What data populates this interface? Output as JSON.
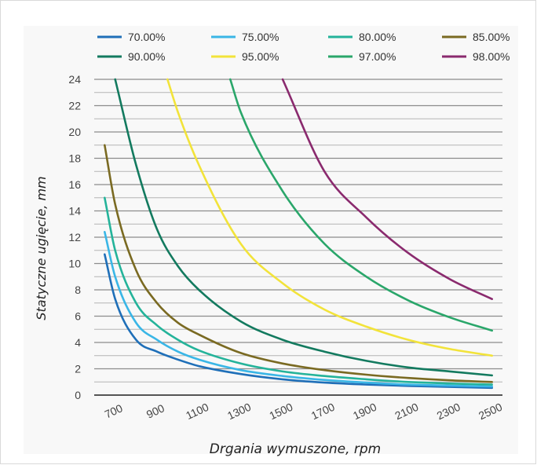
{
  "chart_data": {
    "type": "line",
    "title": "",
    "xlabel": "Drgania wymuszone, rpm",
    "ylabel": "Statyczne ugięcie, mm",
    "xlim": [
      600,
      2550
    ],
    "ylim": [
      0,
      24
    ],
    "x_ticks": [
      "700",
      "900",
      "1100",
      "1300",
      "1500",
      "1700",
      "1900",
      "2100",
      "2300",
      "2500"
    ],
    "y_ticks": [
      "0",
      "2",
      "4",
      "6",
      "8",
      "10",
      "12",
      "14",
      "16",
      "18",
      "20",
      "22",
      "24"
    ],
    "grid": "horizontal",
    "legend_position": "top",
    "series": [
      {
        "name": "70.00%",
        "color": "#1f6fb8",
        "x": [
          650,
          700,
          800,
          900,
          1000,
          1100,
          1300,
          1500,
          1700,
          1900,
          2100,
          2300,
          2500
        ],
        "y": [
          10.7,
          7.3,
          4.2,
          3.3,
          2.7,
          2.2,
          1.6,
          1.2,
          0.95,
          0.8,
          0.7,
          0.62,
          0.55
        ]
      },
      {
        "name": "75.00%",
        "color": "#3ab6e6",
        "x": [
          650,
          700,
          800,
          900,
          1000,
          1100,
          1300,
          1500,
          1700,
          1900,
          2100,
          2300,
          2500
        ],
        "y": [
          12.4,
          9.0,
          5.5,
          4.2,
          3.3,
          2.7,
          1.9,
          1.45,
          1.15,
          0.95,
          0.8,
          0.72,
          0.65
        ]
      },
      {
        "name": "80.00%",
        "color": "#24b39a",
        "x": [
          650,
          700,
          800,
          900,
          1000,
          1100,
          1300,
          1500,
          1700,
          1900,
          2100,
          2300,
          2500
        ],
        "y": [
          15.0,
          11.0,
          7.0,
          5.3,
          4.2,
          3.4,
          2.4,
          1.8,
          1.45,
          1.2,
          1.0,
          0.88,
          0.8
        ]
      },
      {
        "name": "85.00%",
        "color": "#7a6a22",
        "x": [
          650,
          700,
          800,
          900,
          1000,
          1100,
          1300,
          1500,
          1700,
          1900,
          2100,
          2300,
          2500
        ],
        "y": [
          19.0,
          14.5,
          9.5,
          7.0,
          5.5,
          4.6,
          3.2,
          2.4,
          1.9,
          1.55,
          1.3,
          1.12,
          1.0
        ]
      },
      {
        "name": "90.00%",
        "color": "#137a5f",
        "x": [
          700,
          800,
          900,
          1000,
          1100,
          1300,
          1500,
          1700,
          1900,
          2100,
          2300,
          2500
        ],
        "y": [
          24.0,
          17.5,
          12.6,
          9.8,
          8.0,
          5.6,
          4.2,
          3.3,
          2.6,
          2.1,
          1.8,
          1.5
        ]
      },
      {
        "name": "95.00%",
        "color": "#f2e33a",
        "x": [
          950,
          1000,
          1100,
          1300,
          1500,
          1700,
          1900,
          2100,
          2300,
          2500
        ],
        "y": [
          24.0,
          21.5,
          17.5,
          11.5,
          8.5,
          6.5,
          5.2,
          4.2,
          3.5,
          3.0
        ]
      },
      {
        "name": "97.00%",
        "color": "#2aa66a",
        "x": [
          1250,
          1300,
          1500,
          1700,
          1900,
          2100,
          2300,
          2500
        ],
        "y": [
          24.0,
          21.5,
          15.5,
          11.5,
          9.0,
          7.2,
          5.9,
          4.9
        ]
      },
      {
        "name": "98.00%",
        "color": "#8a2a6e",
        "x": [
          1500,
          1700,
          1900,
          2100,
          2300,
          2500
        ],
        "y": [
          24.0,
          17.0,
          13.5,
          10.8,
          8.8,
          7.3
        ]
      }
    ]
  }
}
